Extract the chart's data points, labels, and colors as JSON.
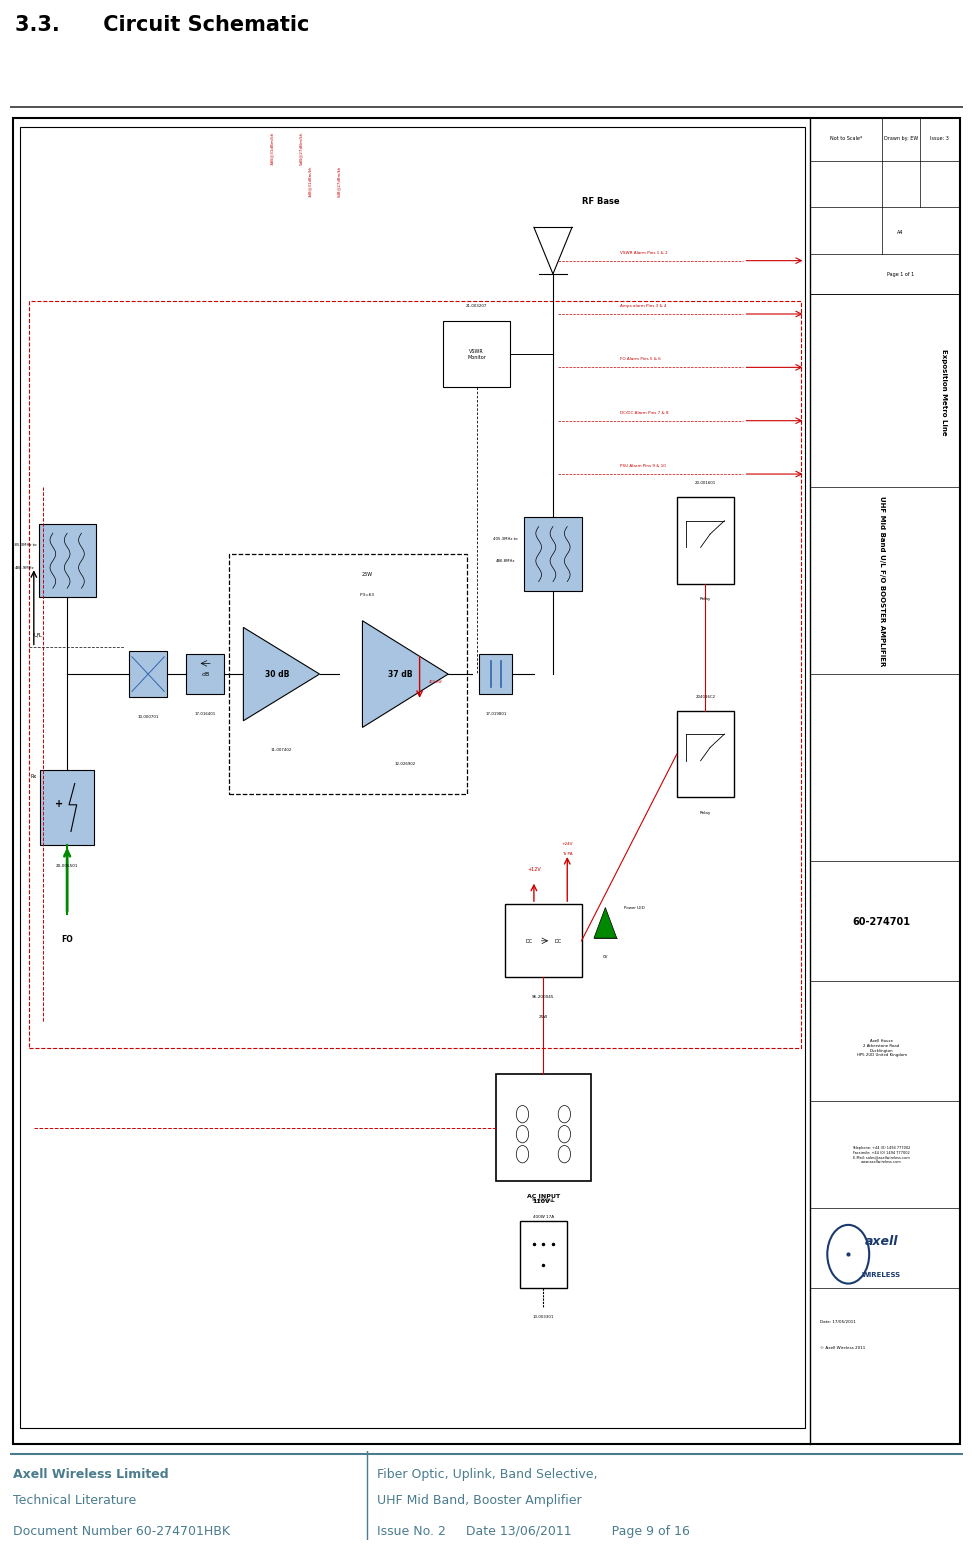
{
  "title": "3.3.      Circuit Schematic",
  "title_fontsize": 15,
  "footer_color": "#4a7c8e",
  "bg_color": "#ffffff",
  "blue_fill": "#a8c4e0",
  "red_color": "#cc0000",
  "green_color": "#008800",
  "black": "#000000",
  "footer_left": [
    "Axell Wireless Limited",
    "Technical Literature",
    "Document Number 60-274701HBK"
  ],
  "footer_right": [
    "Fiber Optic, Uplink, Band Selective,",
    "UHF Mid Band, Booster Amplifier",
    "Issue No. 2     Date 13/06/2011          Page 9 of 16"
  ],
  "alarm_labels": [
    "VSWR Alarm Pins 1 & 2",
    "Amps alarm Pins 3 & 4",
    "FO Alarm Pins 5 & 6",
    "DC/DC Alarm Pins 7 & 8",
    "PSU Alarm Pins 9 & 10"
  ]
}
